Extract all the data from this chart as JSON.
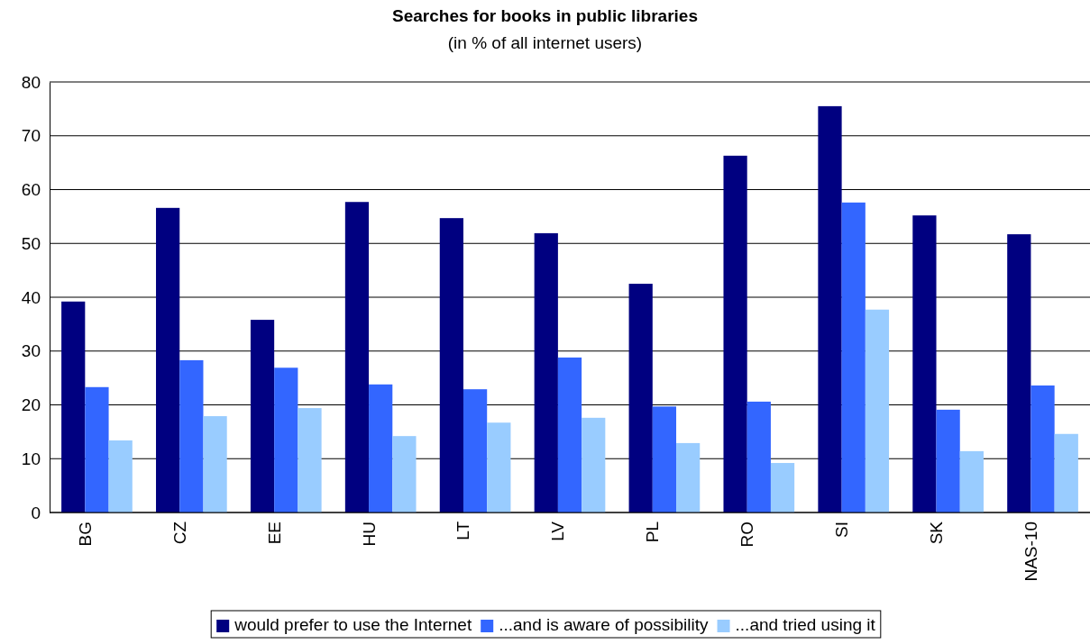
{
  "chart_data": {
    "type": "bar",
    "title": "Searches for books in public libraries",
    "subtitle": "(in % of all internet users)",
    "categories": [
      "BG",
      "CZ",
      "EE",
      "HU",
      "LT",
      "LV",
      "PL",
      "RO",
      "SI",
      "SK",
      "NAS-10"
    ],
    "series": [
      {
        "name": "would prefer to use the Internet",
        "color": "#000080",
        "values": [
          39.2,
          56.6,
          35.8,
          57.7,
          54.7,
          51.9,
          42.5,
          66.3,
          75.5,
          55.2,
          51.7
        ]
      },
      {
        "name": "...and is aware of possibility",
        "color": "#3366ff",
        "values": [
          23.3,
          28.3,
          26.9,
          23.8,
          22.9,
          28.8,
          19.7,
          20.6,
          57.6,
          19.1,
          23.6
        ]
      },
      {
        "name": "...and tried using it",
        "color": "#99ccff",
        "values": [
          13.4,
          17.9,
          19.4,
          14.2,
          16.7,
          17.6,
          12.9,
          9.2,
          37.7,
          11.4,
          14.6
        ]
      }
    ],
    "ylim": [
      0,
      80
    ],
    "yticks": [
      0,
      10,
      20,
      30,
      40,
      50,
      60,
      70,
      80
    ],
    "grid": "y",
    "legend": "bottom"
  }
}
